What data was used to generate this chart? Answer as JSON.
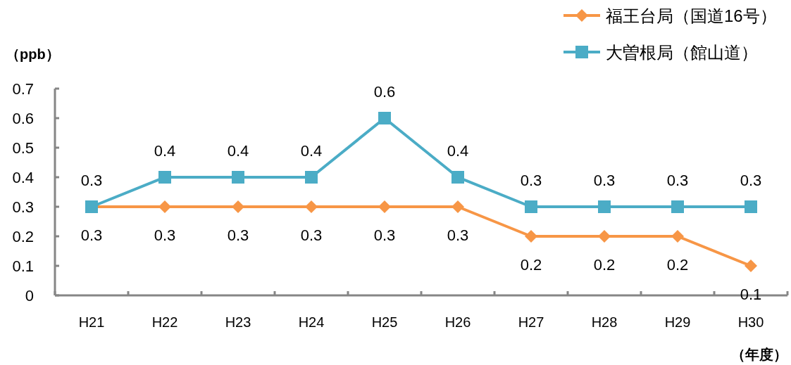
{
  "chart_data": {
    "type": "line",
    "ylabel": "（ppb）",
    "xlabel": "（年度）",
    "categories": [
      "H21",
      "H22",
      "H23",
      "H24",
      "H25",
      "H26",
      "H27",
      "H28",
      "H29",
      "H30"
    ],
    "series": [
      {
        "name": "福王台局（国道16号）",
        "color": "#f79646",
        "marker": "diamond",
        "values": [
          0.3,
          0.3,
          0.3,
          0.3,
          0.3,
          0.3,
          0.2,
          0.2,
          0.2,
          0.1
        ]
      },
      {
        "name": "大曽根局（館山道）",
        "color": "#4bacc6",
        "marker": "square",
        "values": [
          0.3,
          0.4,
          0.4,
          0.4,
          0.6,
          0.4,
          0.3,
          0.3,
          0.3,
          0.3
        ]
      }
    ],
    "ylim": [
      0,
      0.7
    ],
    "yticks": [
      0,
      0.1,
      0.2,
      0.3,
      0.4,
      0.5,
      0.6,
      0.7
    ],
    "grid": false,
    "legend": "top right",
    "data_labels": true
  }
}
